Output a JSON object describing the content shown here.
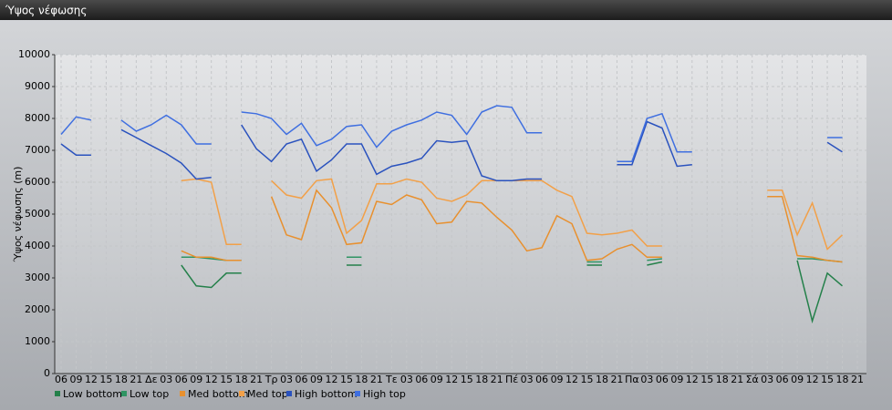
{
  "window_title": "Ύψος νέφωσης",
  "chart_data": {
    "type": "line",
    "y_label": "Ύψος νέφωσης (m)",
    "categories": [
      "06",
      "09",
      "12",
      "15",
      "18",
      "21",
      "Δε",
      "03",
      "06",
      "09",
      "12",
      "15",
      "18",
      "21",
      "Τρ",
      "03",
      "06",
      "09",
      "12",
      "15",
      "18",
      "21",
      "Τε",
      "03",
      "06",
      "09",
      "12",
      "15",
      "18",
      "21",
      "Πέ",
      "03",
      "06",
      "09",
      "12",
      "15",
      "18",
      "21",
      "Πα",
      "03",
      "06",
      "09",
      "12",
      "15",
      "18",
      "21",
      "Σά",
      "03",
      "06",
      "09",
      "12",
      "15",
      "18",
      "21"
    ],
    "ylim": [
      0,
      10000
    ],
    "yticks": [
      0,
      1000,
      2000,
      3000,
      4000,
      5000,
      6000,
      7000,
      8000,
      9000,
      10000
    ],
    "grid": true,
    "legend": "bottom",
    "series": [
      {
        "name": "Low bottom",
        "color": "#24804a",
        "values": [
          null,
          null,
          null,
          null,
          null,
          null,
          null,
          null,
          3400,
          2750,
          2700,
          3150,
          3150,
          null,
          null,
          null,
          null,
          null,
          null,
          3400,
          3400,
          null,
          null,
          null,
          null,
          null,
          null,
          null,
          null,
          null,
          null,
          null,
          null,
          null,
          null,
          3400,
          3400,
          null,
          null,
          3400,
          3500,
          null,
          null,
          null,
          null,
          null,
          null,
          null,
          null,
          3550,
          1650,
          3150,
          2750,
          null
        ]
      },
      {
        "name": "Low top",
        "color": "#2f9463",
        "values": [
          null,
          null,
          null,
          null,
          null,
          null,
          null,
          null,
          3650,
          3650,
          3600,
          3550,
          3550,
          null,
          null,
          null,
          null,
          null,
          null,
          3650,
          3650,
          null,
          null,
          null,
          null,
          null,
          null,
          null,
          null,
          null,
          null,
          null,
          null,
          null,
          null,
          3500,
          3500,
          null,
          null,
          3550,
          3600,
          null,
          null,
          null,
          null,
          null,
          null,
          null,
          null,
          3600,
          3600,
          3550,
          3500,
          null
        ]
      },
      {
        "name": "Med bottom",
        "color": "#e8902e",
        "values": [
          null,
          null,
          null,
          null,
          null,
          null,
          null,
          null,
          3850,
          3650,
          3650,
          3550,
          3550,
          null,
          5550,
          4350,
          4200,
          5750,
          5200,
          4050,
          4100,
          5400,
          5300,
          5600,
          5450,
          4700,
          4750,
          5400,
          5350,
          4900,
          4500,
          3850,
          3950,
          4950,
          4700,
          3550,
          3600,
          3900,
          4050,
          3650,
          3650,
          null,
          null,
          null,
          null,
          null,
          null,
          5550,
          5550,
          3700,
          3650,
          3550,
          3500,
          null
        ]
      },
      {
        "name": "Med top",
        "color": "#f2a048",
        "values": [
          null,
          null,
          null,
          null,
          null,
          null,
          null,
          null,
          6050,
          6100,
          6000,
          4050,
          4050,
          null,
          6050,
          5600,
          5500,
          6050,
          6100,
          4400,
          4800,
          5950,
          5950,
          6100,
          6000,
          5500,
          5400,
          5600,
          6050,
          6050,
          6050,
          6050,
          6050,
          5750,
          5550,
          4400,
          4350,
          4400,
          4500,
          4000,
          4000,
          null,
          null,
          null,
          null,
          null,
          null,
          5750,
          5750,
          4350,
          5350,
          3900,
          4350,
          null
        ]
      },
      {
        "name": "High bottom",
        "color": "#2a52be",
        "values": [
          7200,
          6850,
          6850,
          null,
          7650,
          7400,
          7150,
          6900,
          6600,
          6100,
          6150,
          null,
          7800,
          7050,
          6650,
          7200,
          7350,
          6350,
          6700,
          7200,
          7200,
          6250,
          6500,
          6600,
          6750,
          7300,
          7250,
          7300,
          6200,
          6050,
          6050,
          6100,
          6100,
          null,
          null,
          null,
          null,
          6550,
          6550,
          7900,
          7700,
          6500,
          6550,
          null,
          null,
          null,
          null,
          null,
          null,
          null,
          null,
          7250,
          6950,
          null
        ]
      },
      {
        "name": "High top",
        "color": "#3f6fe0",
        "values": [
          7500,
          8050,
          7950,
          null,
          7950,
          7600,
          7800,
          8100,
          7800,
          7200,
          7200,
          null,
          8200,
          8150,
          8000,
          7500,
          7850,
          7150,
          7350,
          7750,
          7800,
          7100,
          7600,
          7800,
          7950,
          8200,
          8100,
          7500,
          8200,
          8400,
          8350,
          7550,
          7550,
          null,
          null,
          null,
          null,
          6650,
          6650,
          8000,
          8150,
          6950,
          6950,
          null,
          null,
          null,
          null,
          null,
          null,
          null,
          null,
          7400,
          7400,
          null
        ]
      }
    ]
  }
}
